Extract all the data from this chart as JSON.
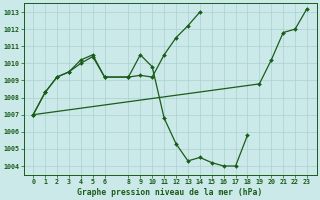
{
  "background_color": "#cce9e9",
  "grid_color": "#aad0d0",
  "line_color": "#1a5c1a",
  "title": "Graphe pression niveau de la mer (hPa)",
  "ylim": [
    1003.5,
    1013.5
  ],
  "yticks": [
    1004,
    1005,
    1006,
    1007,
    1008,
    1009,
    1010,
    1011,
    1012,
    1013
  ],
  "xticks": [
    0,
    1,
    2,
    3,
    4,
    5,
    6,
    8,
    9,
    10,
    11,
    12,
    13,
    14,
    15,
    16,
    17,
    18,
    19,
    20,
    21,
    22,
    23
  ],
  "line1": {
    "x": [
      0,
      1,
      2,
      3,
      4,
      5,
      6,
      8,
      9,
      10,
      11,
      12,
      13,
      14
    ],
    "y": [
      1007.0,
      1008.3,
      1009.2,
      1009.5,
      1010.0,
      1010.4,
      1009.2,
      1009.2,
      1009.3,
      1009.2,
      1010.5,
      1011.5,
      1012.2,
      1013.0
    ]
  },
  "line2": {
    "x": [
      0,
      1,
      2,
      3,
      4,
      5,
      6,
      8,
      9,
      10,
      11,
      12,
      13,
      14,
      15,
      16,
      17,
      18
    ],
    "y": [
      1007.0,
      1008.3,
      1009.2,
      1009.5,
      1010.2,
      1010.5,
      1009.2,
      1009.2,
      1010.5,
      1009.8,
      1006.8,
      1005.3,
      1004.3,
      1004.5,
      1004.2,
      1004.0,
      1004.0,
      1005.8
    ]
  },
  "line3": {
    "x": [
      0,
      19,
      20,
      21,
      22,
      23
    ],
    "y": [
      1007.0,
      1008.8,
      1010.2,
      1011.8,
      1012.0,
      1013.2
    ]
  },
  "markersize": 2.0,
  "linewidth": 0.9
}
